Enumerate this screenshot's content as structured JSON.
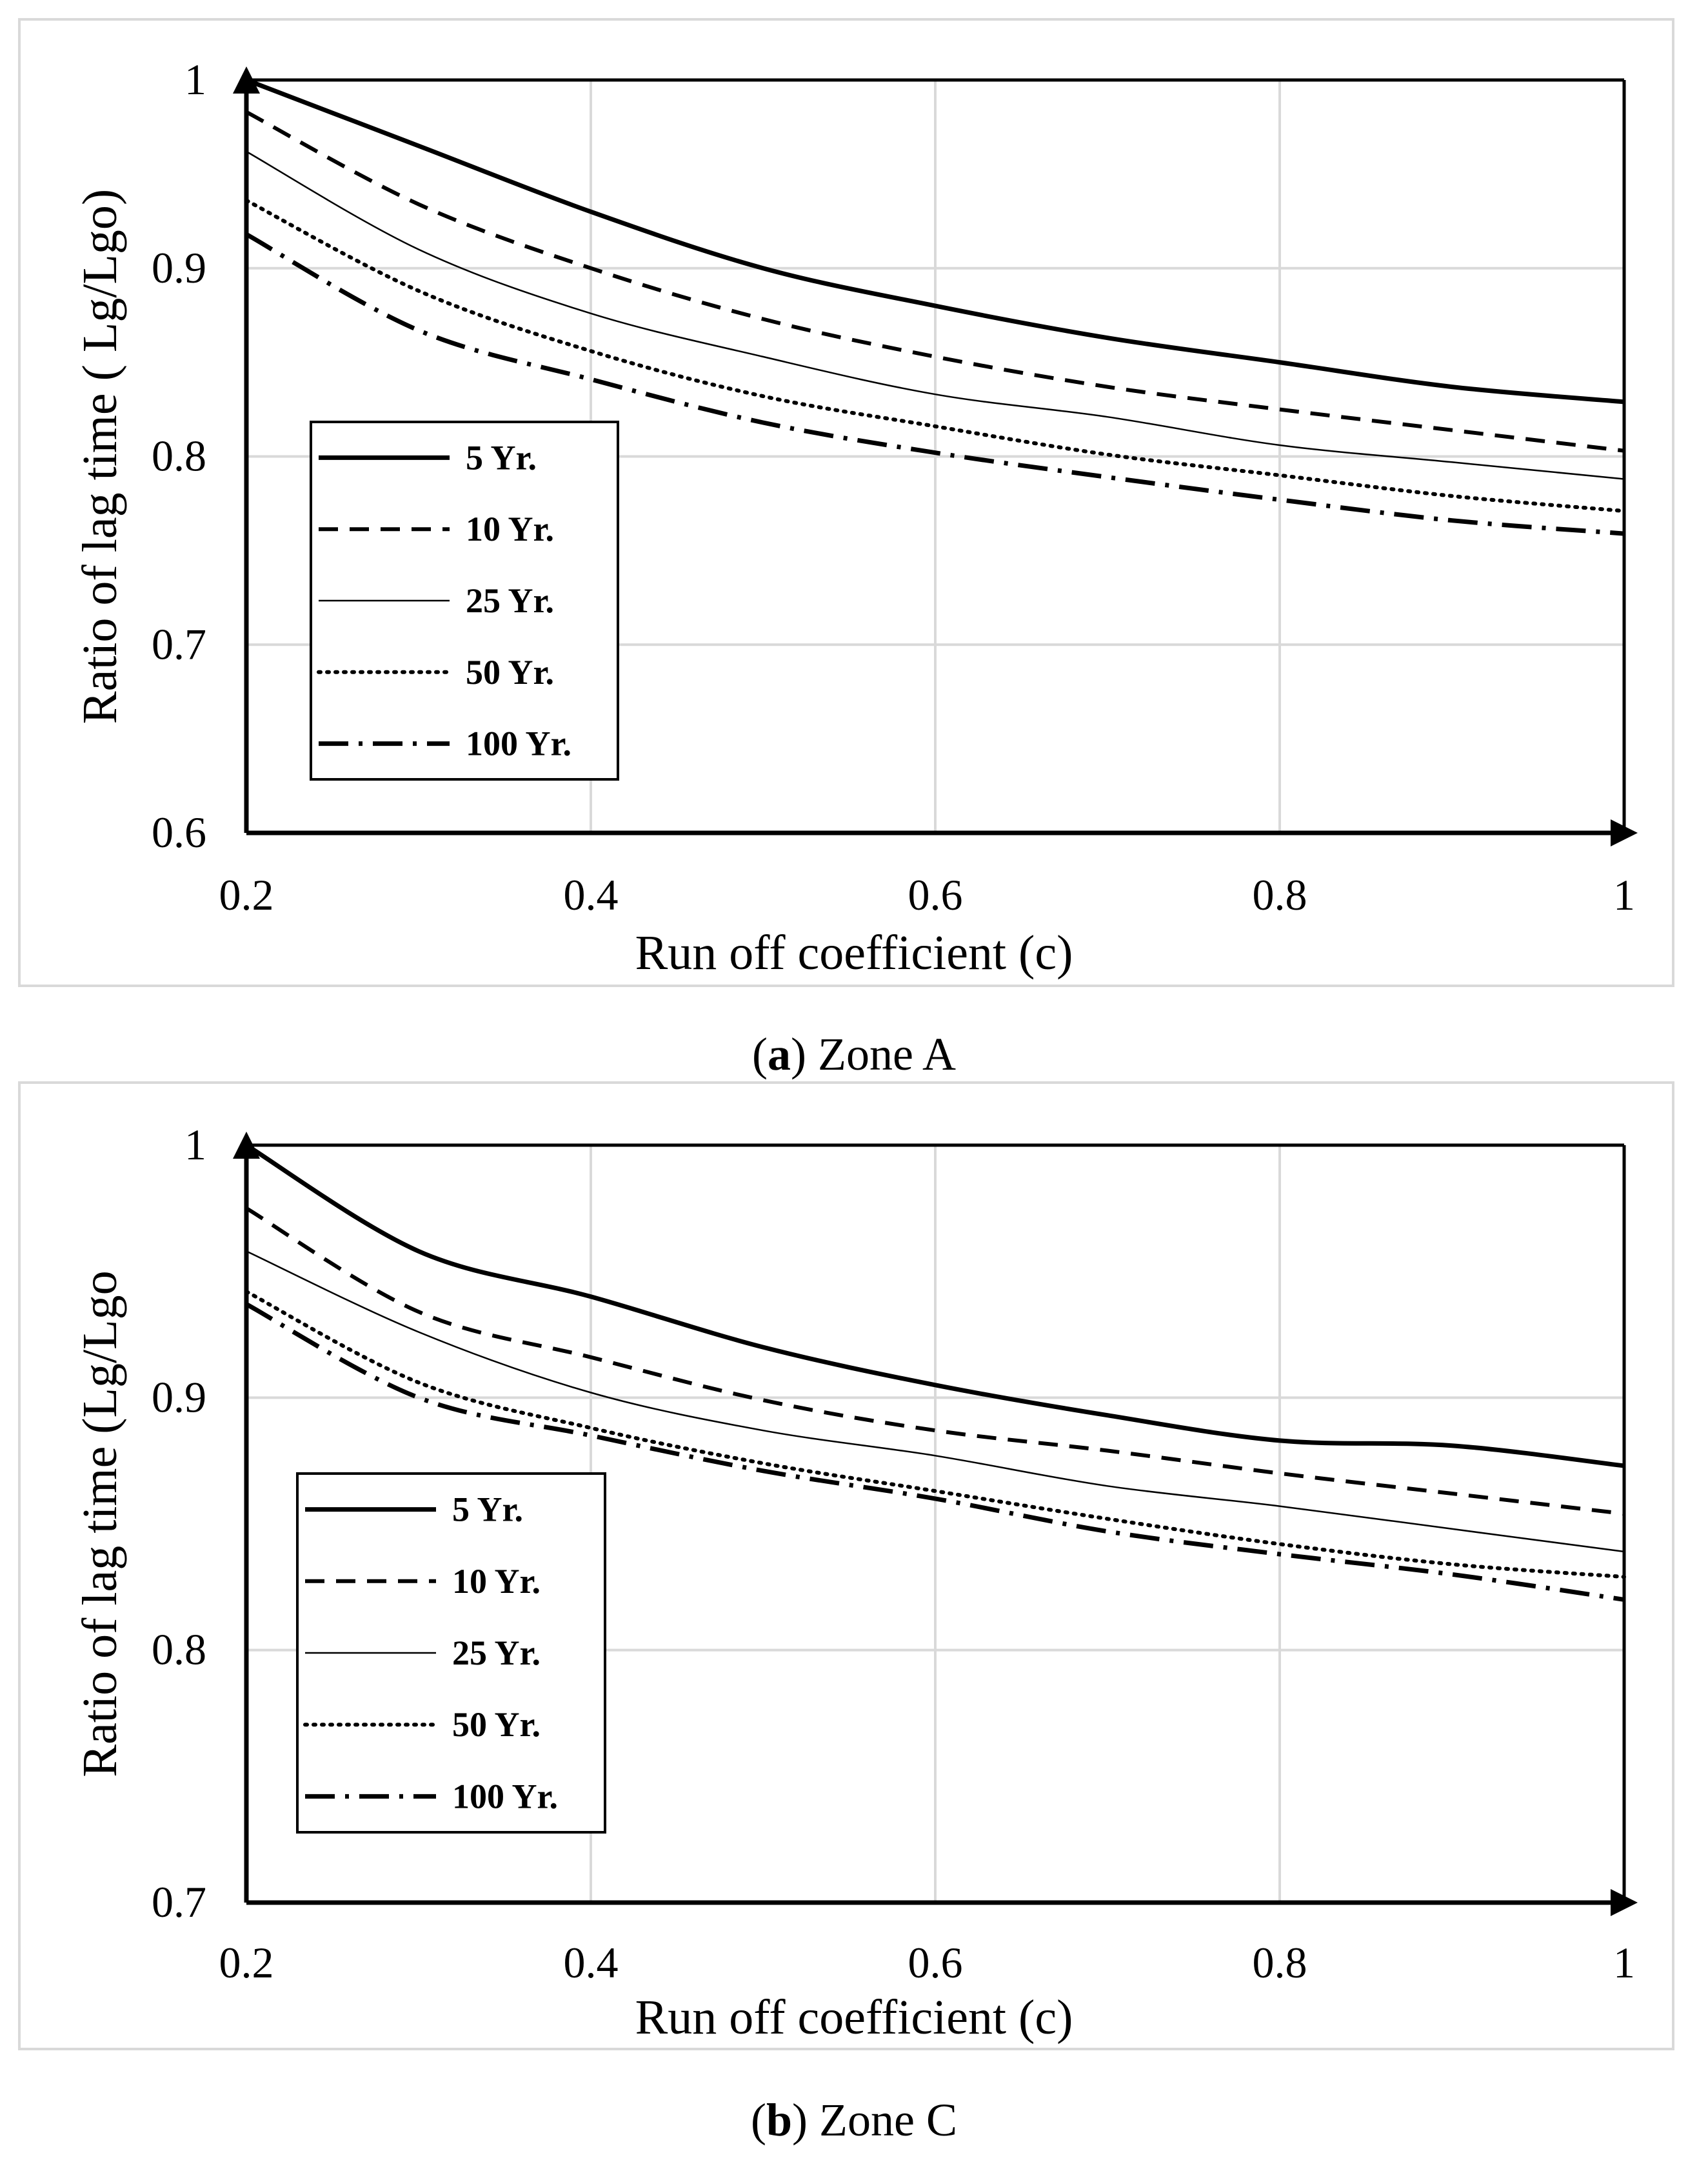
{
  "chart_data": [
    {
      "type": "line",
      "caption_letter": "a",
      "caption_text": ") Zone A",
      "caption_open": "(",
      "xlabel": "Run off coefficient  (c)",
      "ylabel": "Ratio of lag time ( Lg/Lgo)",
      "xlim": [
        0.2,
        1
      ],
      "ylim": [
        0.6,
        1
      ],
      "xticks": [
        0.2,
        0.4,
        0.6,
        0.8,
        1
      ],
      "xtick_labels": [
        "0.2",
        "0.4",
        "0.6",
        "0.8",
        "1"
      ],
      "yticks": [
        0.6,
        0.7,
        0.8,
        0.9,
        1
      ],
      "ytick_labels": [
        "0.6",
        "0.7",
        "0.8",
        "0.9",
        "1"
      ],
      "grid": true,
      "legend_position": "left-middle",
      "series": [
        {
          "name": "5 Yr.",
          "style": "solid-thick",
          "x": [
            0.2,
            0.3,
            0.4,
            0.5,
            0.6,
            0.7,
            0.8,
            0.9,
            1.0
          ],
          "values": [
            1.0,
            0.965,
            0.93,
            0.9,
            0.88,
            0.863,
            0.85,
            0.837,
            0.829
          ]
        },
        {
          "name": "10 Yr.",
          "style": "dashed",
          "x": [
            0.2,
            0.3,
            0.4,
            0.5,
            0.6,
            0.7,
            0.8,
            0.9,
            1.0
          ],
          "values": [
            0.983,
            0.934,
            0.9,
            0.873,
            0.853,
            0.837,
            0.825,
            0.814,
            0.803
          ]
        },
        {
          "name": "25 Yr.",
          "style": "solid-thin",
          "x": [
            0.2,
            0.3,
            0.4,
            0.5,
            0.6,
            0.7,
            0.8,
            0.9,
            1.0
          ],
          "values": [
            0.962,
            0.91,
            0.876,
            0.853,
            0.833,
            0.821,
            0.806,
            0.797,
            0.788
          ]
        },
        {
          "name": "50 Yr.",
          "style": "dotted",
          "x": [
            0.2,
            0.3,
            0.4,
            0.5,
            0.6,
            0.7,
            0.8,
            0.9,
            1.0
          ],
          "values": [
            0.936,
            0.888,
            0.856,
            0.832,
            0.816,
            0.801,
            0.79,
            0.779,
            0.771
          ]
        },
        {
          "name": "100 Yr.",
          "style": "dash-dot",
          "x": [
            0.2,
            0.3,
            0.4,
            0.5,
            0.6,
            0.7,
            0.8,
            0.9,
            1.0
          ],
          "values": [
            0.918,
            0.867,
            0.841,
            0.818,
            0.802,
            0.789,
            0.777,
            0.766,
            0.759
          ]
        }
      ]
    },
    {
      "type": "line",
      "caption_letter": "b",
      "caption_text": ") Zone C",
      "caption_open": "(",
      "xlabel": "Run off coefficient  (c)",
      "ylabel": "Ratio of  lag time (Lg/Lgo",
      "xlim": [
        0.2,
        1
      ],
      "ylim": [
        0.7,
        1
      ],
      "xticks": [
        0.2,
        0.4,
        0.6,
        0.8,
        1
      ],
      "xtick_labels": [
        "0.2",
        "0.4",
        "0.6",
        "0.8",
        "1"
      ],
      "yticks": [
        0.7,
        0.8,
        0.9,
        1
      ],
      "ytick_labels": [
        "0.7",
        "0.8",
        "0.9",
        "1"
      ],
      "grid": true,
      "legend_position": "left-middle",
      "series": [
        {
          "name": "5 Yr.",
          "style": "solid-thick",
          "x": [
            0.2,
            0.3,
            0.4,
            0.5,
            0.6,
            0.7,
            0.8,
            0.9,
            1.0
          ],
          "values": [
            1.0,
            0.958,
            0.94,
            0.92,
            0.905,
            0.893,
            0.883,
            0.881,
            0.873
          ]
        },
        {
          "name": "10 Yr.",
          "style": "dashed",
          "x": [
            0.2,
            0.3,
            0.4,
            0.5,
            0.6,
            0.7,
            0.8,
            0.9,
            1.0
          ],
          "values": [
            0.975,
            0.934,
            0.916,
            0.899,
            0.887,
            0.879,
            0.87,
            0.862,
            0.854
          ]
        },
        {
          "name": "25 Yr.",
          "style": "solid-thin",
          "x": [
            0.2,
            0.3,
            0.4,
            0.5,
            0.6,
            0.7,
            0.8,
            0.9,
            1.0
          ],
          "values": [
            0.958,
            0.926,
            0.902,
            0.887,
            0.877,
            0.865,
            0.857,
            0.848,
            0.839
          ]
        },
        {
          "name": "50 Yr.",
          "style": "dotted",
          "x": [
            0.2,
            0.3,
            0.4,
            0.5,
            0.6,
            0.7,
            0.8,
            0.9,
            1.0
          ],
          "values": [
            0.942,
            0.906,
            0.888,
            0.874,
            0.863,
            0.852,
            0.842,
            0.834,
            0.829
          ]
        },
        {
          "name": "100 Yr.",
          "style": "dash-dot",
          "x": [
            0.2,
            0.3,
            0.4,
            0.5,
            0.6,
            0.7,
            0.8,
            0.9,
            1.0
          ],
          "values": [
            0.937,
            0.9,
            0.885,
            0.871,
            0.86,
            0.847,
            0.838,
            0.83,
            0.82
          ]
        }
      ]
    }
  ]
}
